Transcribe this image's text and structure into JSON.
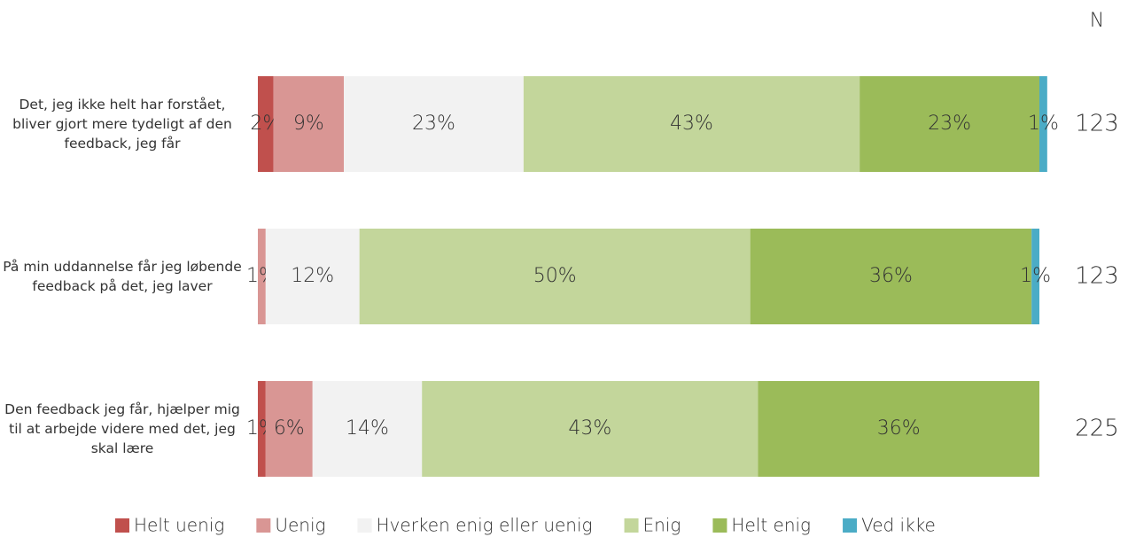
{
  "chart_data": {
    "type": "stacked_bar_horizontal",
    "n_header": "N",
    "categories": [
      "Det, jeg ikke helt har forstået, bliver gjort mere tydeligt af den feedback, jeg får",
      "På min uddannelse får jeg løbende feedback på det, jeg laver",
      "Den feedback jeg får, hjælper mig til at arbejde videre med det, jeg skal lære"
    ],
    "n": [
      123,
      123,
      225
    ],
    "xlim": [
      0,
      100
    ],
    "series": [
      {
        "name": "Helt uenig",
        "color": "#c0504d",
        "values": [
          2,
          null,
          1
        ],
        "value_labels": [
          "2%",
          null,
          "1%"
        ]
      },
      {
        "name": "Uenig",
        "color": "#d99694",
        "values": [
          9,
          1,
          6
        ],
        "value_labels": [
          "9%",
          "1%",
          "6%"
        ]
      },
      {
        "name": "Hverken enig eller uenig",
        "color": "#f2f2f2",
        "values": [
          23,
          12,
          14
        ],
        "value_labels": [
          "23%",
          "12%",
          "14%"
        ]
      },
      {
        "name": "Enig",
        "color": "#c3d69b",
        "values": [
          43,
          50,
          43
        ],
        "value_labels": [
          "43%",
          "50%",
          "43%"
        ]
      },
      {
        "name": "Helt enig",
        "color": "#9bbb59",
        "values": [
          23,
          36,
          36
        ],
        "value_labels": [
          "23%",
          "36%",
          "36%"
        ]
      },
      {
        "name": "Ved ikke",
        "color": "#4bacc6",
        "values": [
          1,
          1,
          null
        ],
        "value_labels": [
          "1%",
          "1%",
          null
        ]
      }
    ],
    "legend": "bottom"
  }
}
